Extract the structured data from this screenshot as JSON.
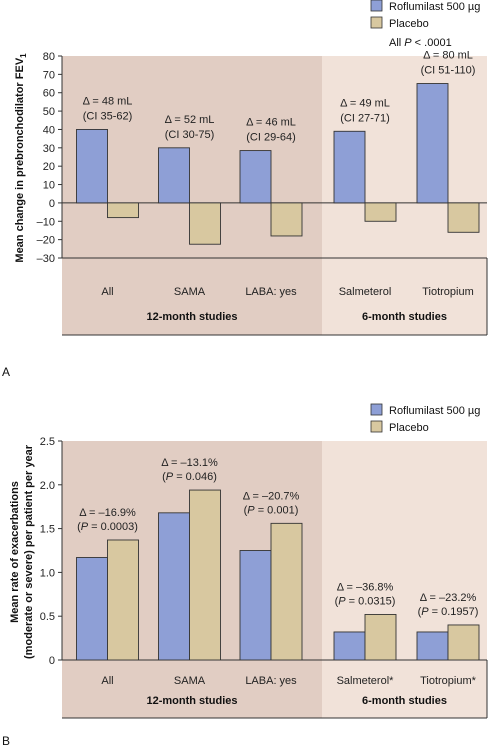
{
  "chart_data": [
    {
      "panel_label": "A",
      "type": "bar",
      "ylabel": "Mean change in prebronchodilator FEV",
      "ylabel_sub": "1",
      "ylim": [
        -30,
        80
      ],
      "yticks": [
        -30,
        -20,
        -10,
        0,
        10,
        20,
        30,
        40,
        50,
        60,
        70,
        80
      ],
      "categories": [
        "All",
        "SAMA",
        "LABA: yes",
        "Salmeterol",
        "Tiotropium"
      ],
      "series": [
        {
          "name": "Roflumilast 500 µg",
          "color": "#8e9fd6",
          "values": [
            40,
            30,
            28.5,
            39,
            65
          ]
        },
        {
          "name": "Placebo",
          "color": "#d8c8a0",
          "values": [
            -8,
            -22.5,
            -18,
            -10,
            -16
          ]
        }
      ],
      "legend_note_pre": "All ",
      "legend_note_italic": "P",
      "legend_note_post": " < .0001",
      "annotations": [
        {
          "line1": "Δ = 48 mL",
          "line2": "(CI 35-62)"
        },
        {
          "line1": "Δ = 52 mL",
          "line2": "(CI 30-75)"
        },
        {
          "line1": "Δ = 46 mL",
          "line2": "(CI 29-64)"
        },
        {
          "line1": "Δ = 49 mL",
          "line2": "(CI 27-71)"
        },
        {
          "line1": "Δ = 80 mL",
          "line2": "(CI 51-110)"
        }
      ],
      "groups": [
        "12-month studies",
        "6-month studies"
      ],
      "group_colors": [
        "#e1cdc3",
        "#f1e2d9"
      ]
    },
    {
      "panel_label": "B",
      "type": "bar",
      "ylabel_line1": "Mean rate of exacerbations",
      "ylabel_line2": "(moderate or severe) per patient per year",
      "ylim": [
        0,
        2.5
      ],
      "yticks": [
        "0",
        "0.5",
        "1.0",
        "1.5",
        "2.0",
        "2.5"
      ],
      "categories": [
        "All",
        "SAMA",
        "LABA: yes",
        "Salmeterol*",
        "Tiotropium*"
      ],
      "series": [
        {
          "name": "Roflumilast 500 µg",
          "color": "#8e9fd6",
          "values": [
            1.17,
            1.68,
            1.25,
            0.32,
            0.32
          ]
        },
        {
          "name": "Placebo",
          "color": "#d8c8a0",
          "values": [
            1.37,
            1.94,
            1.56,
            0.52,
            0.4
          ]
        }
      ],
      "annotations": [
        {
          "line1": "Δ = –16.9%",
          "line2": "(P = 0.0003)"
        },
        {
          "line1": "Δ = –13.1%",
          "line2": "(P = 0.046)"
        },
        {
          "line1": "Δ = –20.7%",
          "line2": "(P = 0.001)"
        },
        {
          "line1": "Δ = –36.8%",
          "line2": "(P = 0.0315)"
        },
        {
          "line1": "Δ = –23.2%",
          "line2": "(P = 0.1957)"
        }
      ],
      "groups": [
        "12-month studies",
        "6-month studies"
      ],
      "group_colors": [
        "#e1cdc3",
        "#f1e2d9"
      ]
    }
  ]
}
